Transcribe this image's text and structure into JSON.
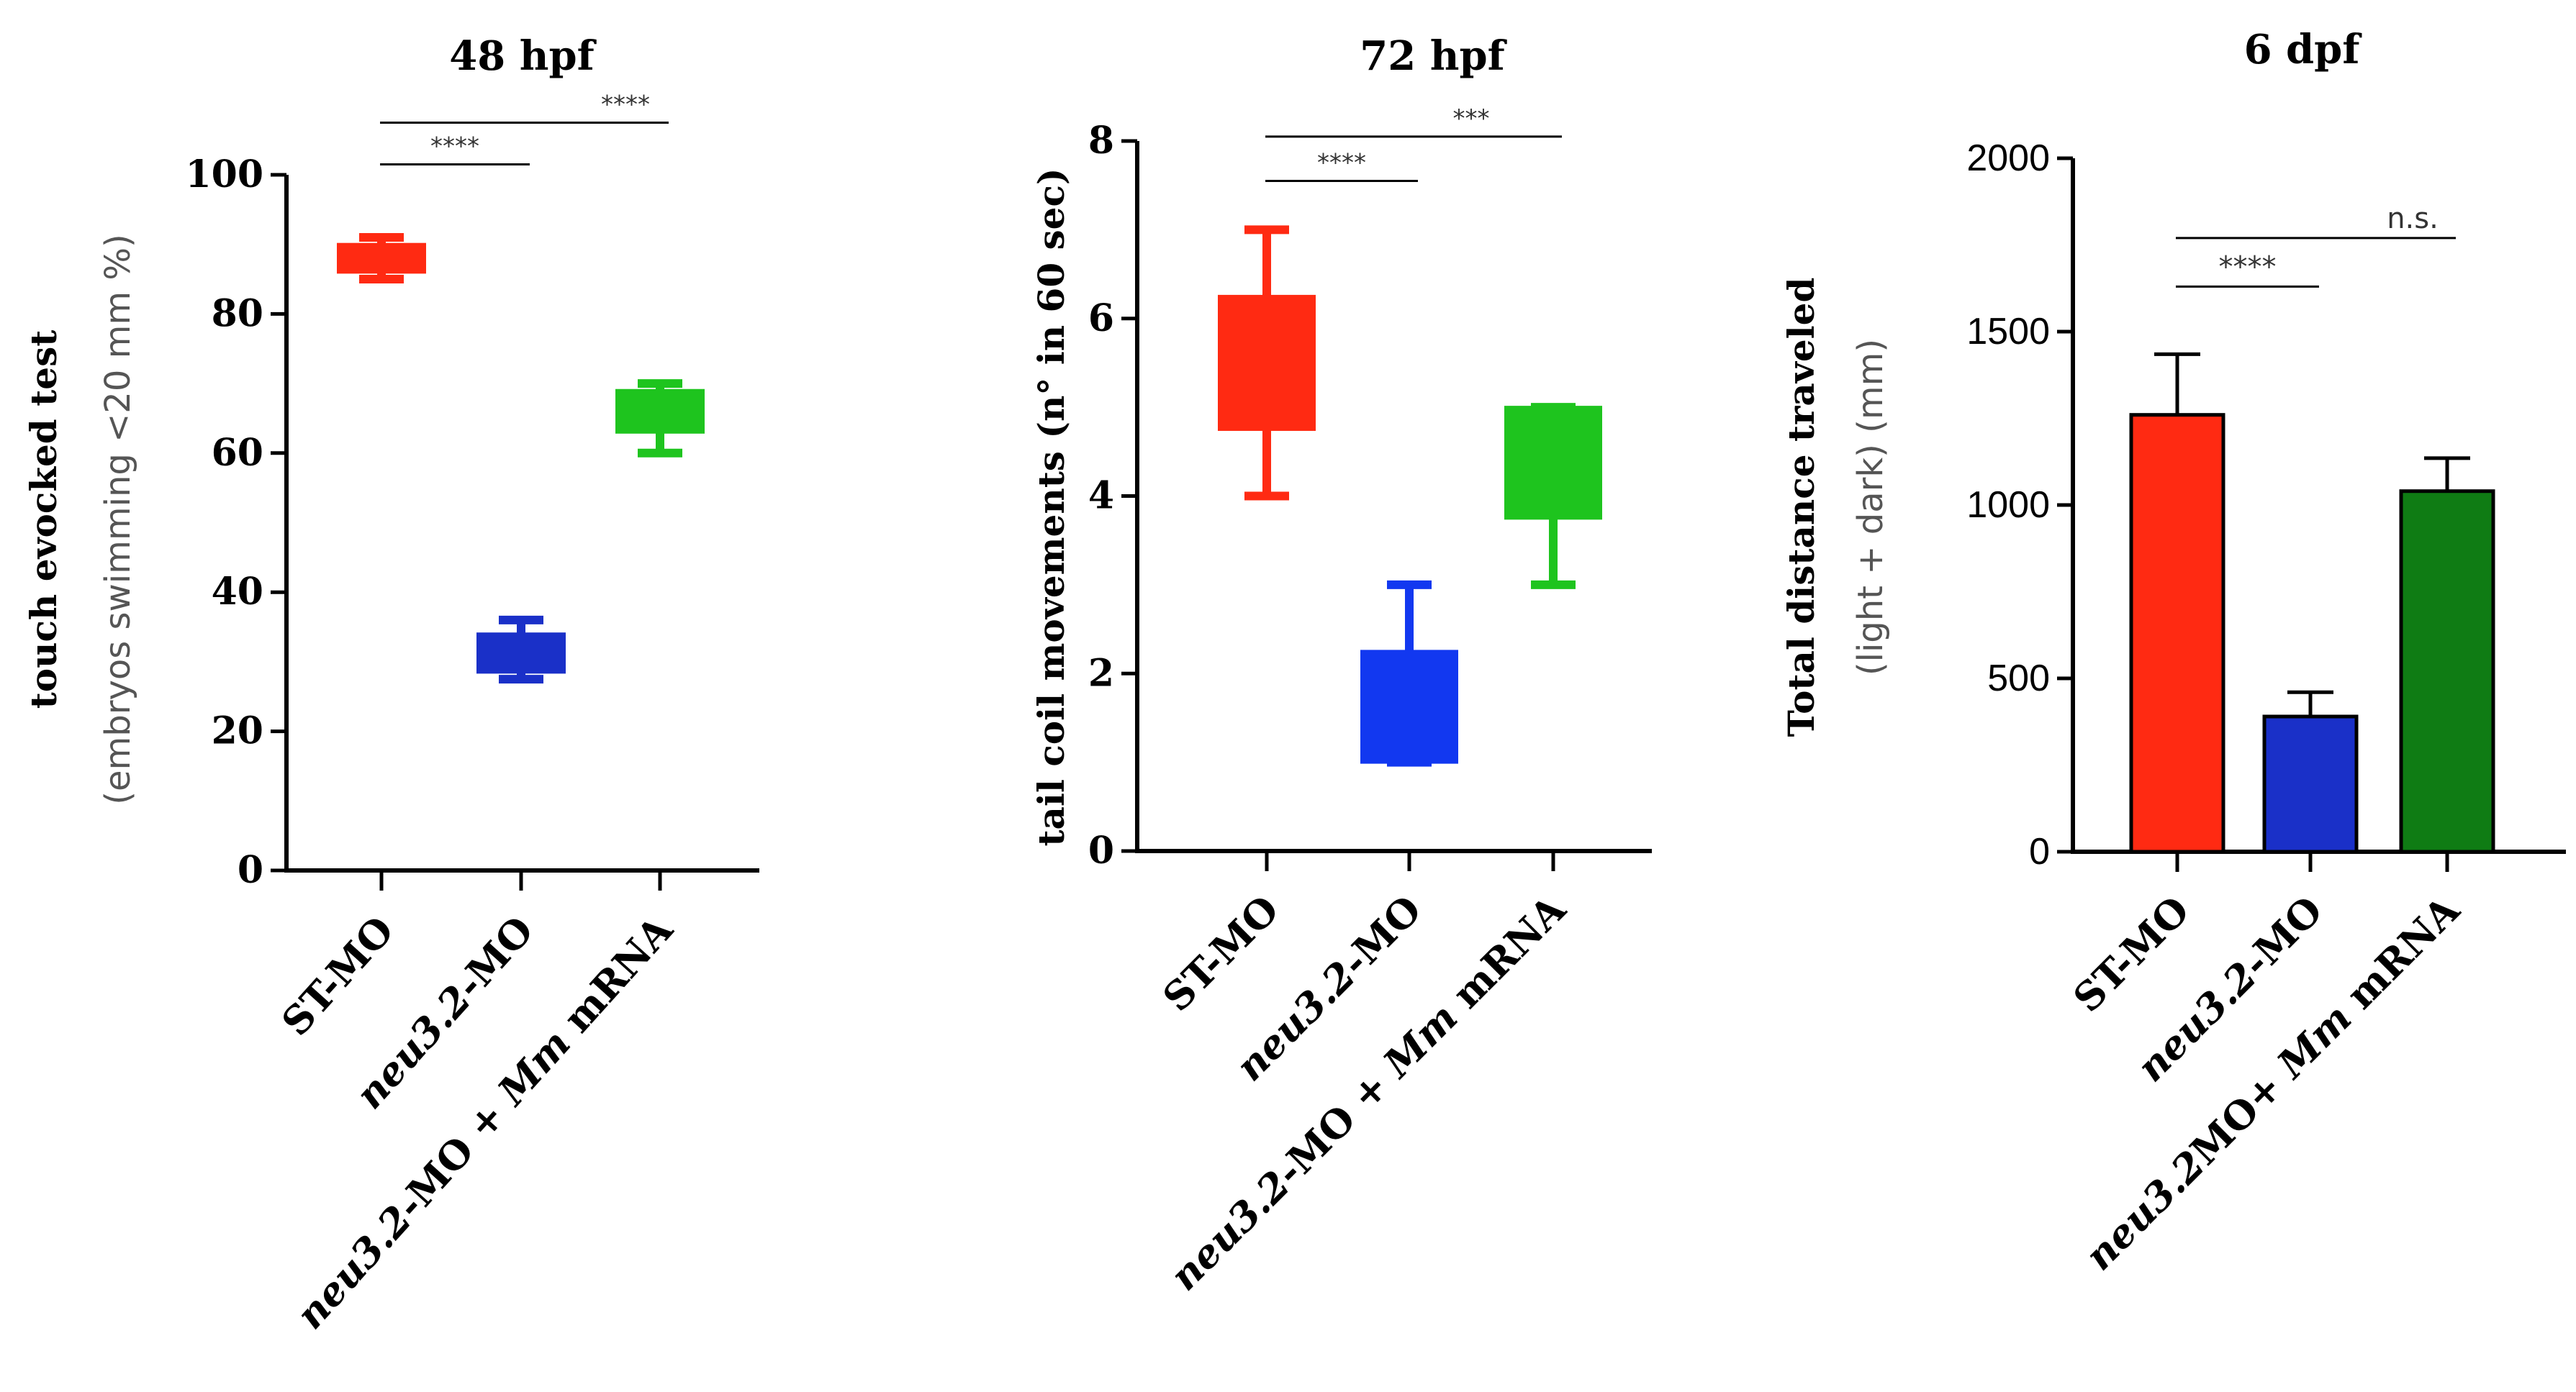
{
  "chart_data": [
    {
      "type": "box",
      "title": "48 hpf",
      "ylabel": "touch evocked test",
      "ylabel2": "(embryos swimming <20 mm %)",
      "ylim": [
        0,
        100
      ],
      "yticks": [
        0,
        20,
        40,
        60,
        80,
        100
      ],
      "categories": [
        "ST-MO",
        "neu3.2-MO",
        "neu3.2-MO + Mm mRNA"
      ],
      "category_parts": [
        [
          {
            "t": "ST-MO",
            "i": false
          }
        ],
        [
          {
            "t": "neu3.2",
            "i": true
          },
          {
            "t": "-MO",
            "i": false
          }
        ],
        [
          {
            "t": "neu3.2",
            "i": true
          },
          {
            "t": "-MO + ",
            "i": false
          },
          {
            "t": "Mm",
            "i": true
          },
          {
            "t": " mRNA",
            "i": false
          }
        ]
      ],
      "boxes": [
        {
          "min": 85,
          "q1": 86,
          "median": 88,
          "q3": 90,
          "max": 91,
          "color": "#ff2a12"
        },
        {
          "min": 27.5,
          "q1": 28.5,
          "median": 31,
          "q3": 34,
          "max": 36,
          "color": "#1a30c8"
        },
        {
          "min": 60,
          "q1": 63,
          "median": 66,
          "q3": 69,
          "max": 70,
          "color": "#1ec41e"
        }
      ],
      "significance": [
        {
          "from": 0,
          "to": 1,
          "label": "****",
          "y": 101.5
        },
        {
          "from": 0,
          "to": 2,
          "label": "****",
          "y": 107.5
        }
      ]
    },
    {
      "type": "box",
      "title": "72 hpf",
      "ylabel": "tail coil movements (n° in 60 sec)",
      "ylim": [
        0,
        8
      ],
      "yticks": [
        0,
        2,
        4,
        6,
        8
      ],
      "categories": [
        "ST-MO",
        "neu3.2-MO",
        "neu3.2-MO + Mm mRNA"
      ],
      "category_parts": [
        [
          {
            "t": "ST-MO",
            "i": false
          }
        ],
        [
          {
            "t": "neu3.2",
            "i": true
          },
          {
            "t": "-MO",
            "i": false
          }
        ],
        [
          {
            "t": "neu3.2",
            "i": true
          },
          {
            "t": "-MO + ",
            "i": false
          },
          {
            "t": "Mm",
            "i": true
          },
          {
            "t": " mRNA",
            "i": false
          }
        ]
      ],
      "boxes": [
        {
          "min": 4,
          "q1": 4.75,
          "median": 5.5,
          "q3": 6.25,
          "max": 7,
          "color": "#ff2a12"
        },
        {
          "min": 1,
          "q1": 1,
          "median": 1.5,
          "q3": 2.25,
          "max": 3,
          "color": "#1238f0"
        },
        {
          "min": 3,
          "q1": 3.75,
          "median": 4.5,
          "q3": 5,
          "max": 5,
          "color": "#1ec41e"
        }
      ],
      "significance": [
        {
          "from": 0,
          "to": 1,
          "label": "****",
          "y": 7.55
        },
        {
          "from": 0,
          "to": 2,
          "label": "***",
          "y": 8.05
        }
      ]
    },
    {
      "type": "bar",
      "title": "6 dpf",
      "ylabel": "Total distance traveled",
      "ylabel2": "(light + dark) (mm)",
      "ylim": [
        0,
        2000
      ],
      "yticks": [
        0,
        500,
        1000,
        1500,
        2000
      ],
      "categories": [
        "ST-MO",
        "neu3.2-MO",
        "neu3.2MO+ Mm mRNA"
      ],
      "category_parts": [
        [
          {
            "t": "ST-MO",
            "i": false
          }
        ],
        [
          {
            "t": "neu3.2",
            "i": true
          },
          {
            "t": "-MO",
            "i": false
          }
        ],
        [
          {
            "t": "neu3.2",
            "i": true
          },
          {
            "t": "MO+ ",
            "i": false
          },
          {
            "t": "Mm",
            "i": true
          },
          {
            "t": " mRNA",
            "i": false
          }
        ]
      ],
      "values": [
        1260,
        390,
        1040
      ],
      "errors": [
        175,
        70,
        95
      ],
      "colors": [
        "#ff2a12",
        "#1a30c8",
        "#0f7c14"
      ],
      "significance": [
        {
          "from": 0,
          "to": 1,
          "label": "****",
          "y": 1630
        },
        {
          "from": 0,
          "to": 2,
          "label": "n.s.",
          "y": 1770
        }
      ]
    }
  ]
}
